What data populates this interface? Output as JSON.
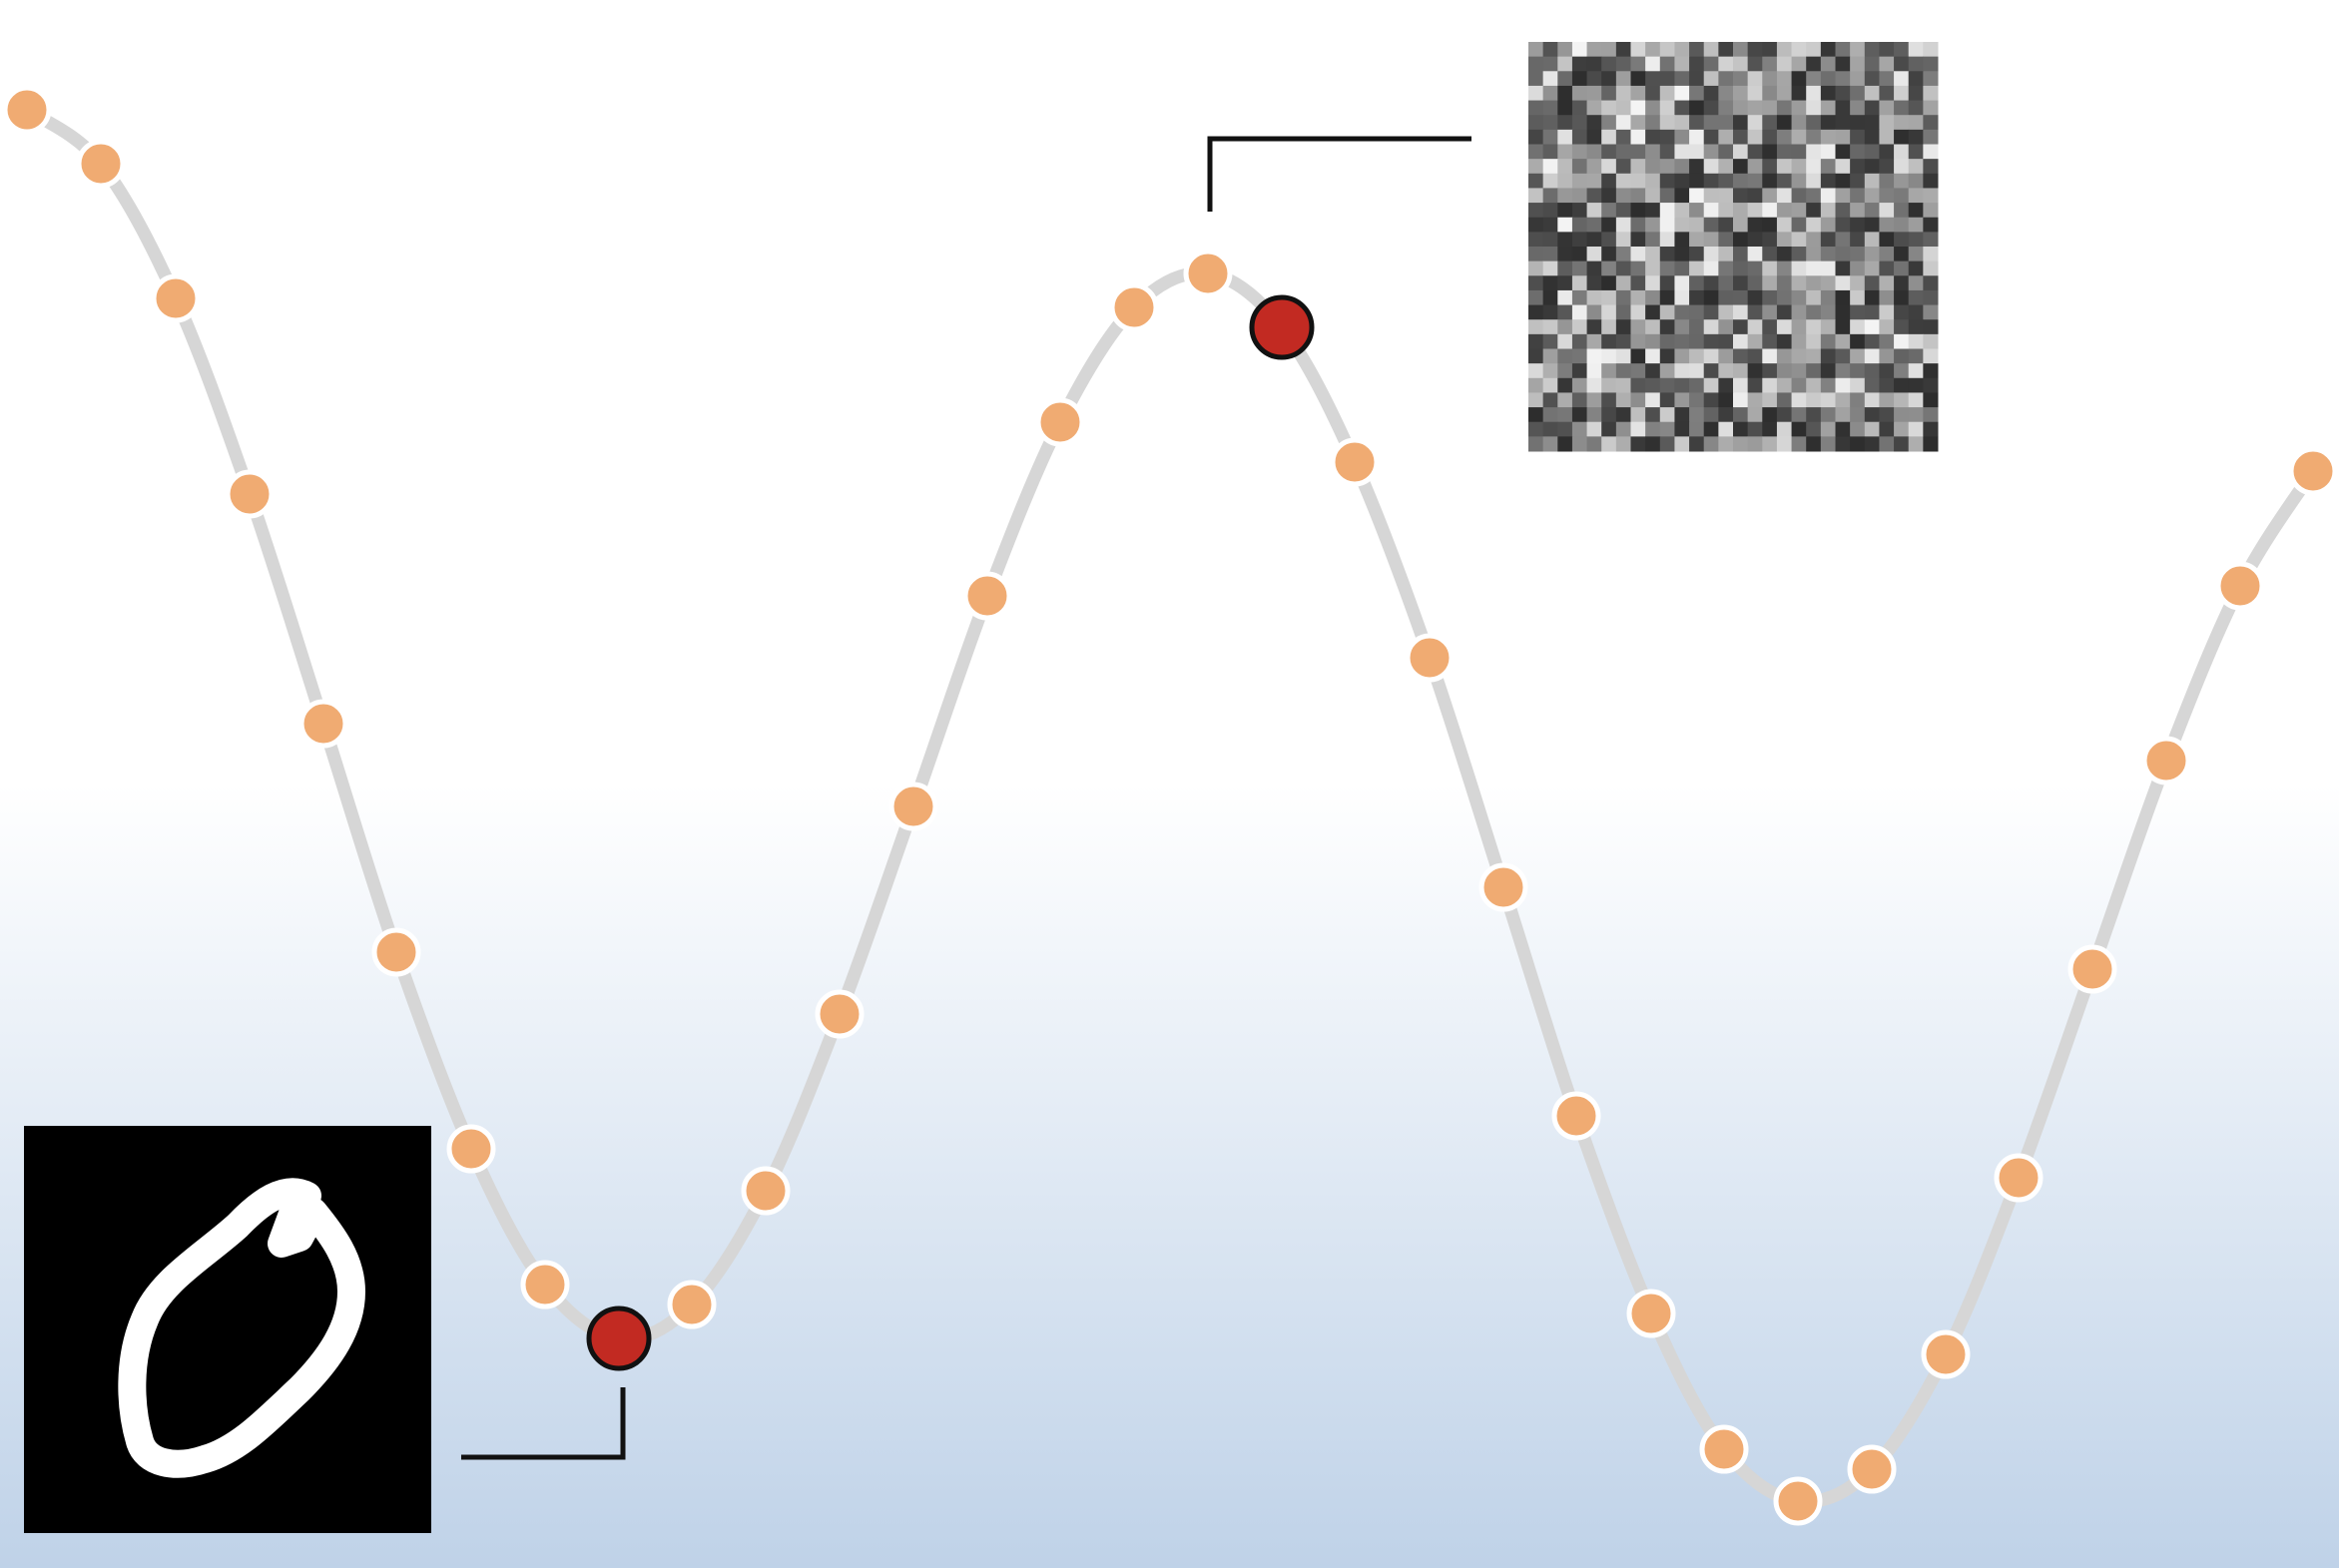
{
  "colors": {
    "background_top": "#ffffff",
    "background_bottom": "#bfd2e8",
    "curve": "#d6d6d6",
    "point_fill": "#f0ab72",
    "point_stroke": "#ffffff",
    "highlight_fill": "#c22a22",
    "highlight_stroke": "#111111",
    "leader_line": "#111111",
    "thumbnail_bg": "#000000",
    "digit_stroke": "#ffffff",
    "noise_dark": "#333333",
    "noise_light": "#e6e6e6"
  },
  "points": [
    {
      "id": 0,
      "kind": "sample"
    },
    {
      "id": 1,
      "kind": "sample"
    },
    {
      "id": 2,
      "kind": "sample"
    },
    {
      "id": 3,
      "kind": "sample"
    },
    {
      "id": 4,
      "kind": "sample"
    },
    {
      "id": 5,
      "kind": "sample"
    },
    {
      "id": 6,
      "kind": "sample"
    },
    {
      "id": 7,
      "kind": "sample"
    },
    {
      "id": 8,
      "kind": "highlight",
      "thumbnail": "clean-digit"
    },
    {
      "id": 9,
      "kind": "sample"
    },
    {
      "id": 10,
      "kind": "sample"
    },
    {
      "id": 11,
      "kind": "sample"
    },
    {
      "id": 12,
      "kind": "sample"
    },
    {
      "id": 13,
      "kind": "sample"
    },
    {
      "id": 14,
      "kind": "sample"
    },
    {
      "id": 15,
      "kind": "sample"
    },
    {
      "id": 16,
      "kind": "sample"
    },
    {
      "id": 17,
      "kind": "highlight",
      "thumbnail": "noise"
    },
    {
      "id": 18,
      "kind": "sample"
    },
    {
      "id": 19,
      "kind": "sample"
    },
    {
      "id": 20,
      "kind": "sample"
    },
    {
      "id": 21,
      "kind": "sample"
    },
    {
      "id": 22,
      "kind": "sample"
    },
    {
      "id": 23,
      "kind": "sample"
    },
    {
      "id": 24,
      "kind": "sample"
    },
    {
      "id": 25,
      "kind": "sample"
    },
    {
      "id": 26,
      "kind": "sample"
    },
    {
      "id": 27,
      "kind": "sample"
    },
    {
      "id": 28,
      "kind": "sample"
    },
    {
      "id": 29,
      "kind": "sample"
    },
    {
      "id": 30,
      "kind": "sample"
    },
    {
      "id": 31,
      "kind": "sample"
    },
    {
      "id": 32,
      "kind": "sample"
    },
    {
      "id": 33,
      "kind": "sample"
    }
  ],
  "thumbnails": [
    {
      "id": "clean-digit",
      "content": "handwritten-zero"
    },
    {
      "id": "noise",
      "content": "gaussian-noise"
    }
  ]
}
